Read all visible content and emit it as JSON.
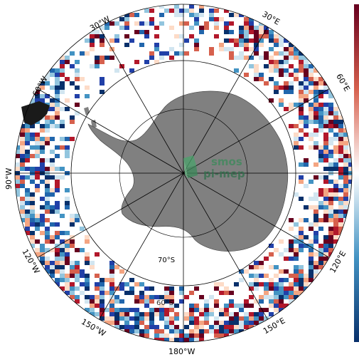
{
  "map": {
    "projection": "south-polar-stereographic",
    "meridian_labels": {
      "w30": "30°W",
      "e30": "30°E",
      "w60": "60°W",
      "e60": "60°E",
      "w90": "90°W",
      "w120": "120°W",
      "e120": "120°E",
      "w150": "150°W",
      "e150": "150°E",
      "w180": "180°W"
    },
    "parallel_labels": {
      "s70": "70°S",
      "s60": "60°S"
    },
    "colors": {
      "land": "#808080",
      "ocean": "#ffffff",
      "grid": "#000000",
      "anomaly_high": "#b2182b",
      "anomaly_low": "#2140a8"
    },
    "colorbar": {
      "low_color": "#08306b",
      "mid_color": "#ffffff",
      "high_color": "#67001f"
    }
  },
  "watermark": {
    "line1": "smos",
    "line2": "pi-mep",
    "icon": "cube-logo"
  }
}
